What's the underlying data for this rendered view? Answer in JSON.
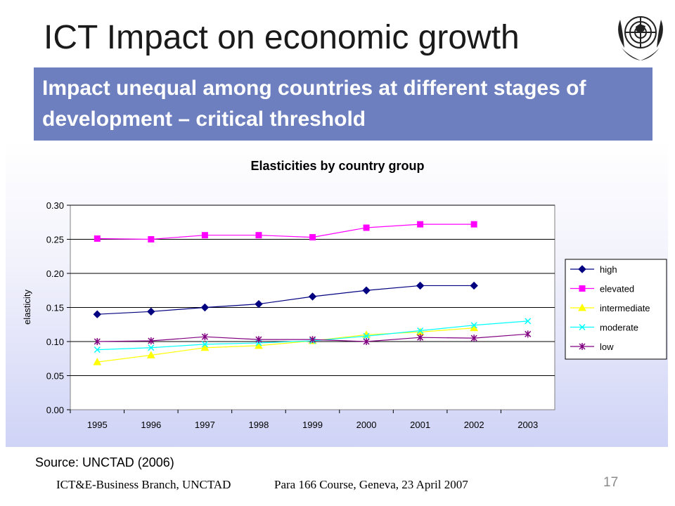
{
  "slide": {
    "title": "ICT Impact on economic growth",
    "banner": "Impact unequal among countries at different stages of development – critical threshold",
    "source": "Source: UNCTAD (2006)",
    "footer_left": "ICT&E-Business Branch, UNCTAD",
    "footer_mid": "Para 166 Course, Geneva, 23 April 2007",
    "page_number": "17",
    "logo_icon": "un-emblem-icon"
  },
  "chart_data": {
    "type": "line",
    "title": "Elasticities by country group",
    "xlabel": "",
    "ylabel": "elasticity",
    "x": [
      "1995",
      "1996",
      "1997",
      "1998",
      "1999",
      "2000",
      "2001",
      "2002",
      "2003"
    ],
    "ylim": [
      0,
      0.3
    ],
    "yticks": [
      "0.00",
      "0.05",
      "0.10",
      "0.15",
      "0.20",
      "0.25",
      "0.30"
    ],
    "grid": "horizontal",
    "legend_position": "right",
    "series": [
      {
        "name": "high",
        "marker": "diamond",
        "color": "#000080",
        "values": [
          0.14,
          0.144,
          0.15,
          0.155,
          0.166,
          0.175,
          0.182,
          0.182,
          null
        ]
      },
      {
        "name": "elevated",
        "marker": "square",
        "color": "#ff00ff",
        "values": [
          0.251,
          0.25,
          0.256,
          0.256,
          0.253,
          0.267,
          0.272,
          0.272,
          null
        ]
      },
      {
        "name": "intermediate",
        "marker": "triangle",
        "color": "#ffff00",
        "values": [
          0.07,
          0.08,
          0.091,
          0.094,
          0.101,
          0.11,
          0.114,
          0.12,
          null
        ]
      },
      {
        "name": "moderate",
        "marker": "x",
        "color": "#00ffff",
        "values": [
          0.088,
          0.091,
          0.096,
          0.098,
          0.101,
          0.108,
          0.116,
          0.124,
          0.13
        ]
      },
      {
        "name": "low",
        "marker": "asterisk",
        "color": "#800080",
        "values": [
          0.1,
          0.101,
          0.107,
          0.103,
          0.103,
          0.1,
          0.106,
          0.105,
          0.111
        ]
      }
    ]
  }
}
